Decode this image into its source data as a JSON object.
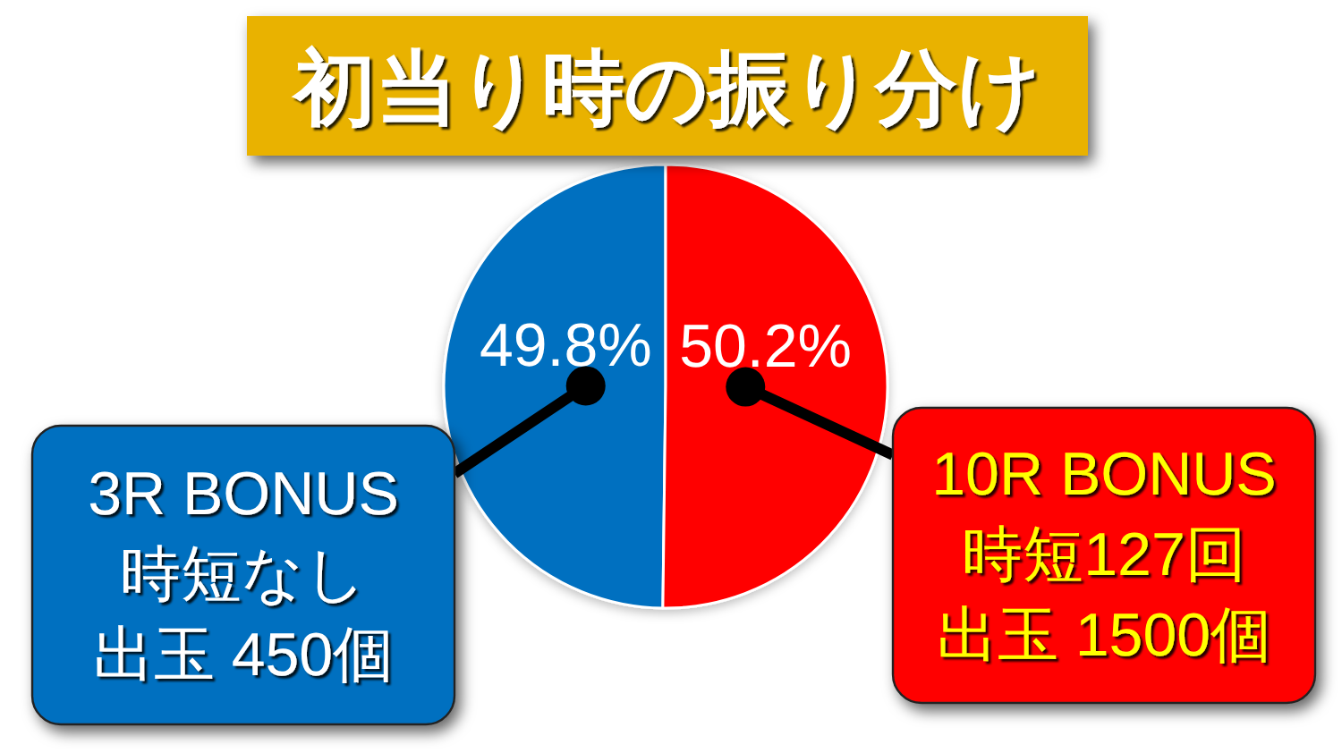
{
  "chart_data": {
    "type": "pie",
    "title": "初当り時の振り分け",
    "categories": [
      "3R BONUS\n時短なし出玉 450個",
      "10R BONUS\n時短127回出玉 1500個"
    ],
    "values": [
      49.8,
      50.2
    ],
    "colors": [
      "#0070c0",
      "#ff0000"
    ],
    "value_labels": [
      "49.8%",
      "50.2%"
    ]
  }
}
